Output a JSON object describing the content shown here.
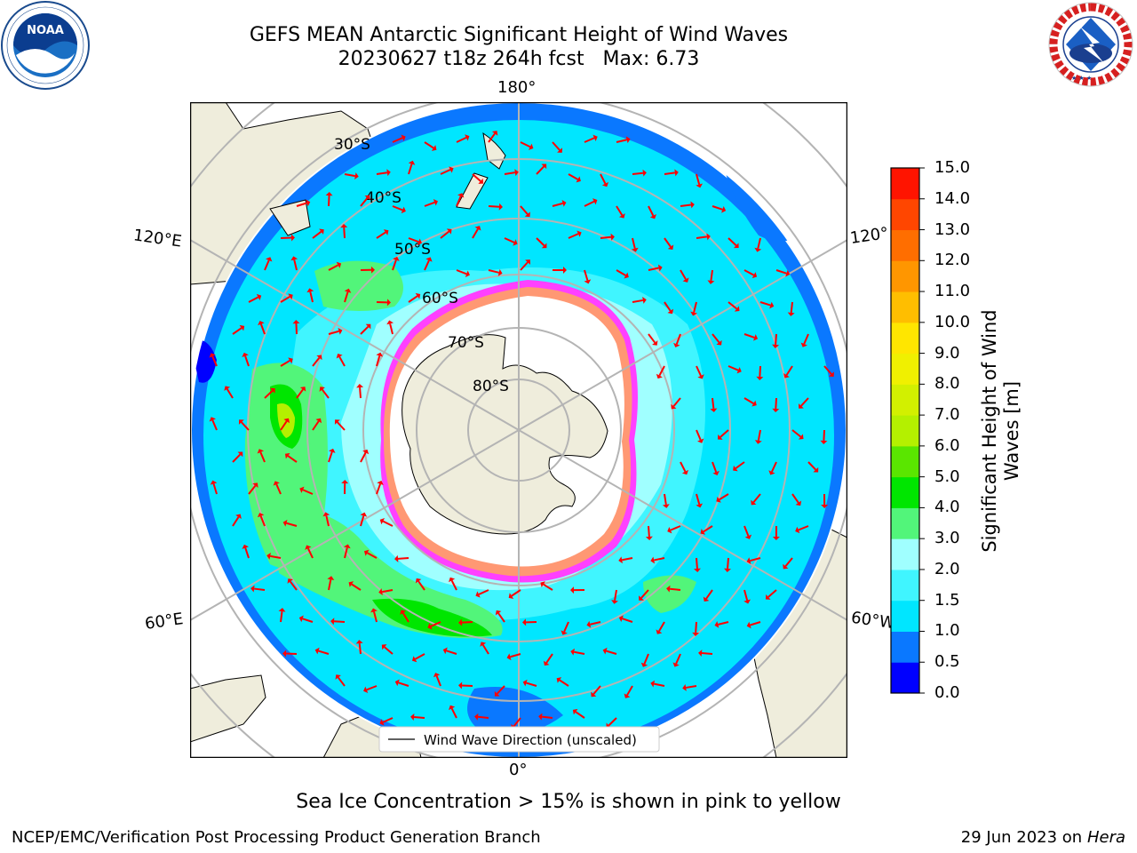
{
  "title": {
    "line1": "GEFS MEAN Antarctic Significant Height of Wind Waves",
    "line2": "20230627 t18z 264h fcst   Max: 6.73"
  },
  "logos": {
    "noaa": {
      "text": "NOAA",
      "ring_text": "NATIONAL OCEANIC AND ATMOSPHERIC ADMINISTRATION · U.S. DEPARTMENT OF COMMERCE"
    },
    "nws": {
      "ring_text": "NATIONAL WEATHER SERVICE"
    }
  },
  "map": {
    "projection": "south-polar-stereographic",
    "longitude_labels": {
      "top": "180°",
      "bottom": "0°",
      "upper_left": "120°E",
      "lower_left": "60°E",
      "upper_right": "120°",
      "lower_right": "60°W"
    },
    "latitude_labels": [
      "30°S",
      "40°S",
      "50°S",
      "60°S",
      "70°S",
      "80°S"
    ],
    "legend": "Wind Wave Direction (unscaled)",
    "colors": {
      "land": "#efeddc",
      "sea_ice_low": "#ff40ff",
      "sea_ice_high": "#ffe000",
      "arrow": "#ff0000",
      "grid": "#b4b4b4"
    }
  },
  "colorbar": {
    "title": "Significant Height of Wind Waves [m]",
    "ticks": [
      "0.0",
      "0.5",
      "1.0",
      "1.5",
      "2.0",
      "3.0",
      "4.0",
      "5.0",
      "6.0",
      "7.0",
      "8.0",
      "9.0",
      "10.0",
      "11.0",
      "12.0",
      "13.0",
      "14.0",
      "15.0"
    ],
    "colors": [
      "#0000ff",
      "#0a78ff",
      "#00e6ff",
      "#40f5ff",
      "#a0ffff",
      "#52f57a",
      "#00e600",
      "#5ae600",
      "#b4f000",
      "#d2f000",
      "#f0f000",
      "#ffe600",
      "#ffbe00",
      "#ff9600",
      "#ff6e00",
      "#ff4600",
      "#ff1400"
    ]
  },
  "footer": {
    "note": "Sea Ice Concentration > 15% is shown in pink to yellow",
    "credit": "NCEP/EMC/Verification Post Processing Product Generation Branch",
    "date": "29 Jun 2023 on",
    "host": "Hera"
  }
}
